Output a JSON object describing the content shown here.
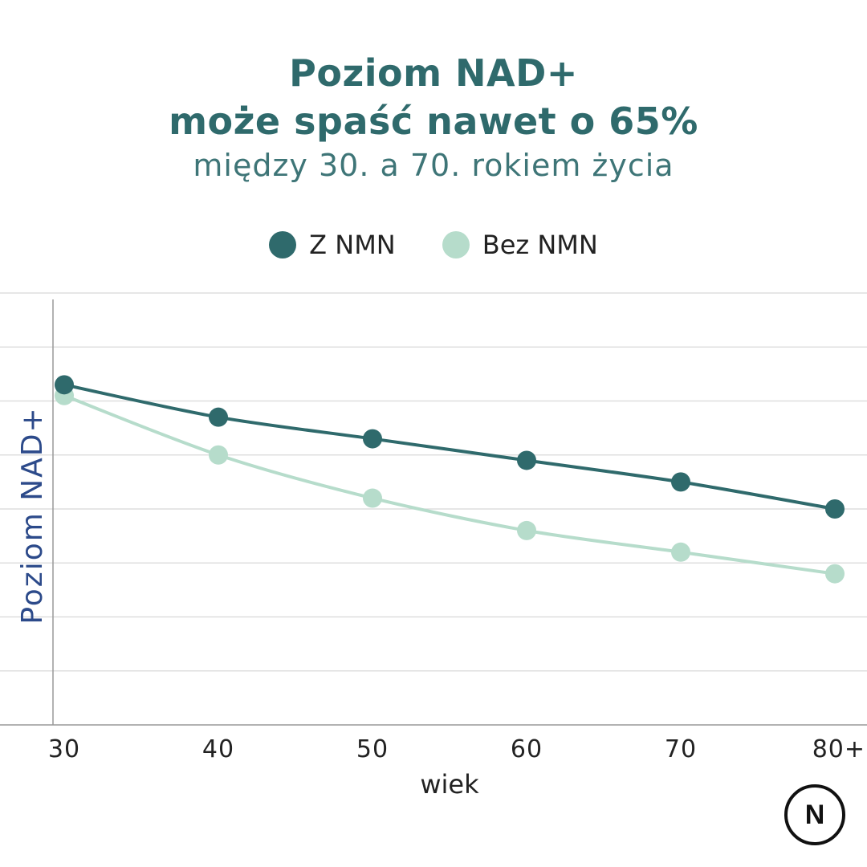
{
  "header": {
    "title_line1": "Poziom NAD+",
    "title_line2": "może spaść nawet o 65%",
    "subtitle": "między 30. a 70. rokiem życia"
  },
  "logo": {
    "text": "N"
  },
  "colors": {
    "with_nmn": "#2f6a6c",
    "without_nmn": "#b6dccb",
    "grid": "#d8d8d8",
    "axis": "#999999",
    "ylabel": "#2c4a8a"
  },
  "chart_data": {
    "type": "line",
    "categories": [
      "30",
      "40",
      "50",
      "60",
      "70",
      "80+"
    ],
    "xlabel": "wiek",
    "ylabel": "Poziom NAD+",
    "ylim": [
      0,
      8
    ],
    "grid": true,
    "legend_position": "top-center",
    "series": [
      {
        "name": "Z NMN",
        "values": [
          6.3,
          5.7,
          5.3,
          4.9,
          4.5,
          4.0
        ]
      },
      {
        "name": "Bez NMN",
        "values": [
          6.1,
          5.0,
          4.2,
          3.6,
          3.2,
          2.8
        ]
      }
    ]
  }
}
